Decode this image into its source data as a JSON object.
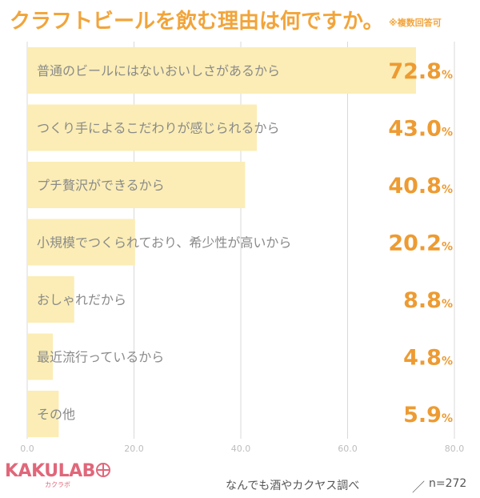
{
  "header": {
    "title": "クラフトビールを飲む理由は何ですか。",
    "note": "※複数回答可"
  },
  "chart_data": {
    "type": "bar",
    "orientation": "horizontal",
    "title": "クラフトビールを飲む理由は何ですか。",
    "categories": [
      "普通のビールにはないおいしさがあるから",
      "つくり手によるこだわりが感じられるから",
      "プチ贅沢ができるから",
      "小規模でつくられており、希少性が高いから",
      "おしゃれだから",
      "最近流行っているから",
      "その他"
    ],
    "values": [
      72.8,
      43.0,
      40.8,
      20.2,
      8.8,
      4.8,
      5.9
    ],
    "value_labels": [
      "72.8",
      "43.0",
      "40.8",
      "20.2",
      "8.8",
      "4.8",
      "5.9"
    ],
    "value_unit": "%",
    "xlim": [
      0,
      80
    ],
    "xticks": [
      "0.0",
      "20.0",
      "40.0",
      "60.0",
      "80.0"
    ],
    "grid": true,
    "bar_color": "#fbedb5",
    "label_color": "#ed9b32",
    "category_color": "#8a8a8a"
  },
  "footer": {
    "logo_text": "KAKULAB",
    "logo_sub": "カクラボ",
    "source": "なんでも酒やカクヤス調べ",
    "slash": "／",
    "sample": "n=272"
  }
}
